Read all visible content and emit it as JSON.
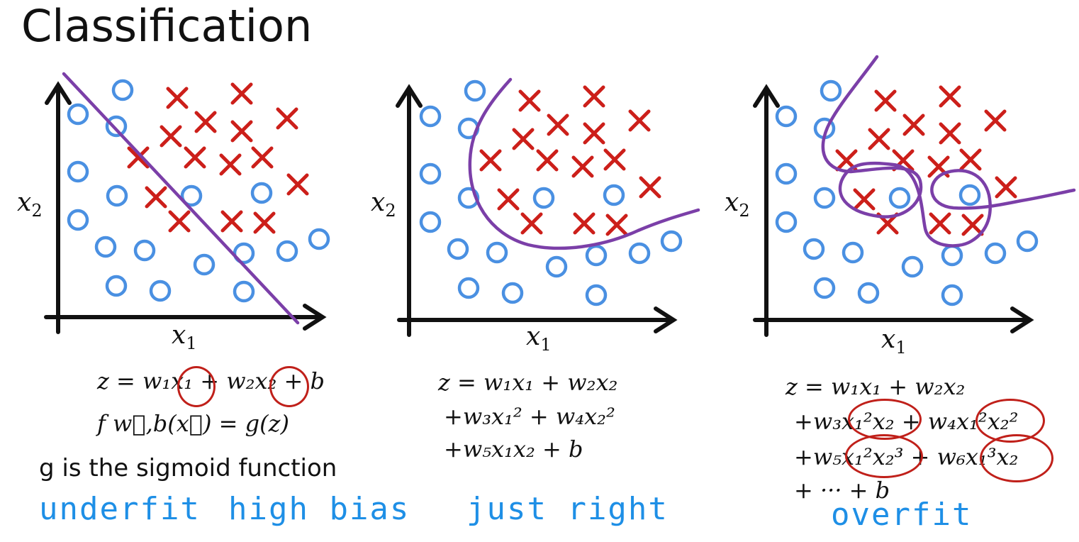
{
  "title": "Classification",
  "colors": {
    "circle": "#4a90e2",
    "cross": "#cc1f1a",
    "boundary": "#7b3fa8",
    "handwriting": "#1e8fe6",
    "annotation": "#c0201a"
  },
  "panels": [
    {
      "id": "underfit",
      "x_label": "x1",
      "y_label": "x2",
      "equation_lines": [
        "z = w₁x₁ + w₂x₂ + b",
        "f w⃗,b(x⃗) = g(z)"
      ],
      "note": "g is the sigmoid function",
      "handwritten": [
        "underfit",
        "high bias"
      ]
    },
    {
      "id": "just-right",
      "x_label": "x1",
      "y_label": "x2",
      "equation_lines": [
        "z = w₁x₁ + w₂x₂",
        "+w₃x₁² + w₄x₂²",
        "+w₅x₁x₂ + b"
      ],
      "handwritten": [
        "just right"
      ]
    },
    {
      "id": "overfit",
      "x_label": "x1",
      "y_label": "x2",
      "equation_lines": [
        "z = w₁x₁ + w₂x₂",
        "+w₃x₁²x₂ + w₄x₁²x₂²",
        "+w₅x₁²x₂³ +  w₆x₁³x₂",
        "+ ··· + b"
      ],
      "handwritten": [
        "overfit"
      ]
    }
  ]
}
